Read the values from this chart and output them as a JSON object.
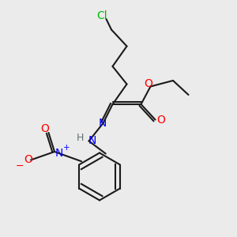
{
  "background_color": "#ebebeb",
  "atom_colors": {
    "C": "#1a1a1a",
    "N": "#0000ff",
    "O": "#ff0000",
    "Cl": "#00bb00",
    "H": "#607070"
  },
  "bond_color": "#1a1a1a",
  "figsize": [
    3.0,
    3.0
  ],
  "dpi": 100
}
